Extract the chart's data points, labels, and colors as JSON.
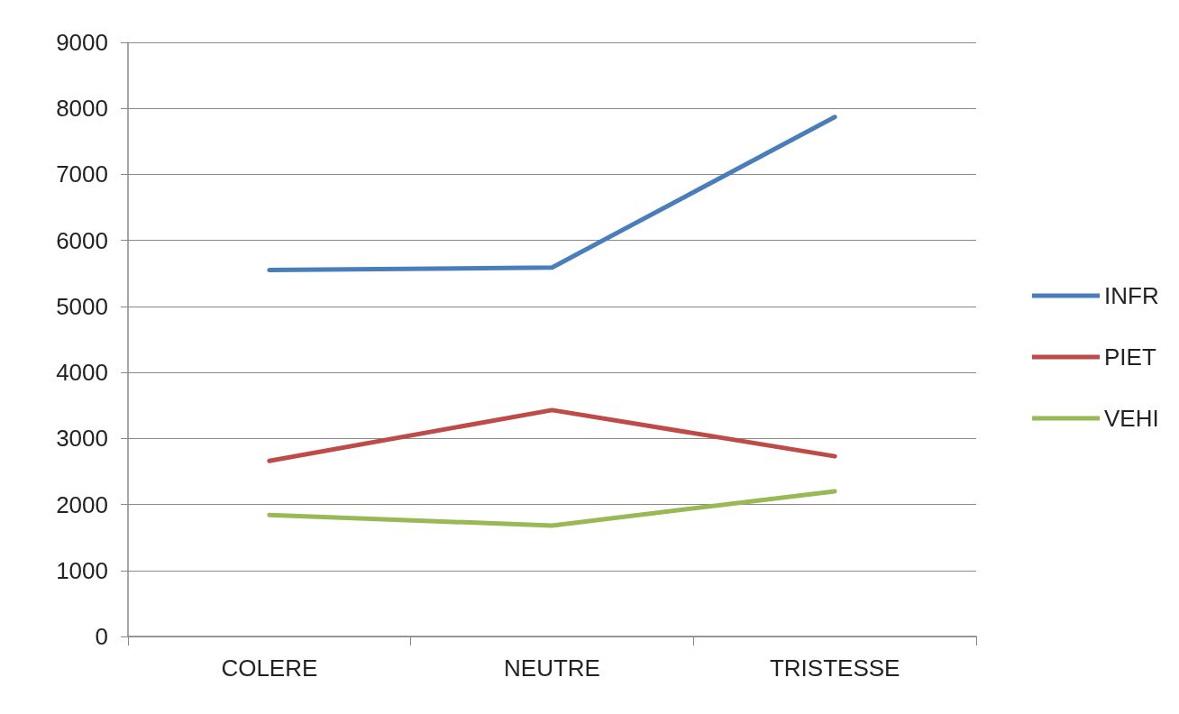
{
  "chart_data": {
    "type": "line",
    "categories": [
      "COLERE",
      "NEUTRE",
      "TRISTESSE"
    ],
    "series": [
      {
        "name": "INFR",
        "color": "#4a7ebb",
        "values": [
          5550,
          5590,
          7870
        ]
      },
      {
        "name": "PIET",
        "color": "#be4b48",
        "values": [
          2660,
          3430,
          2730
        ]
      },
      {
        "name": "VEHI",
        "color": "#98b954",
        "values": [
          1840,
          1680,
          2200
        ]
      }
    ],
    "ylim": [
      0,
      9000
    ],
    "yticks": [
      0,
      1000,
      2000,
      3000,
      4000,
      5000,
      6000,
      7000,
      8000,
      9000
    ],
    "grid": "y",
    "legend": "right",
    "marker": "none",
    "line_style": "solid"
  }
}
